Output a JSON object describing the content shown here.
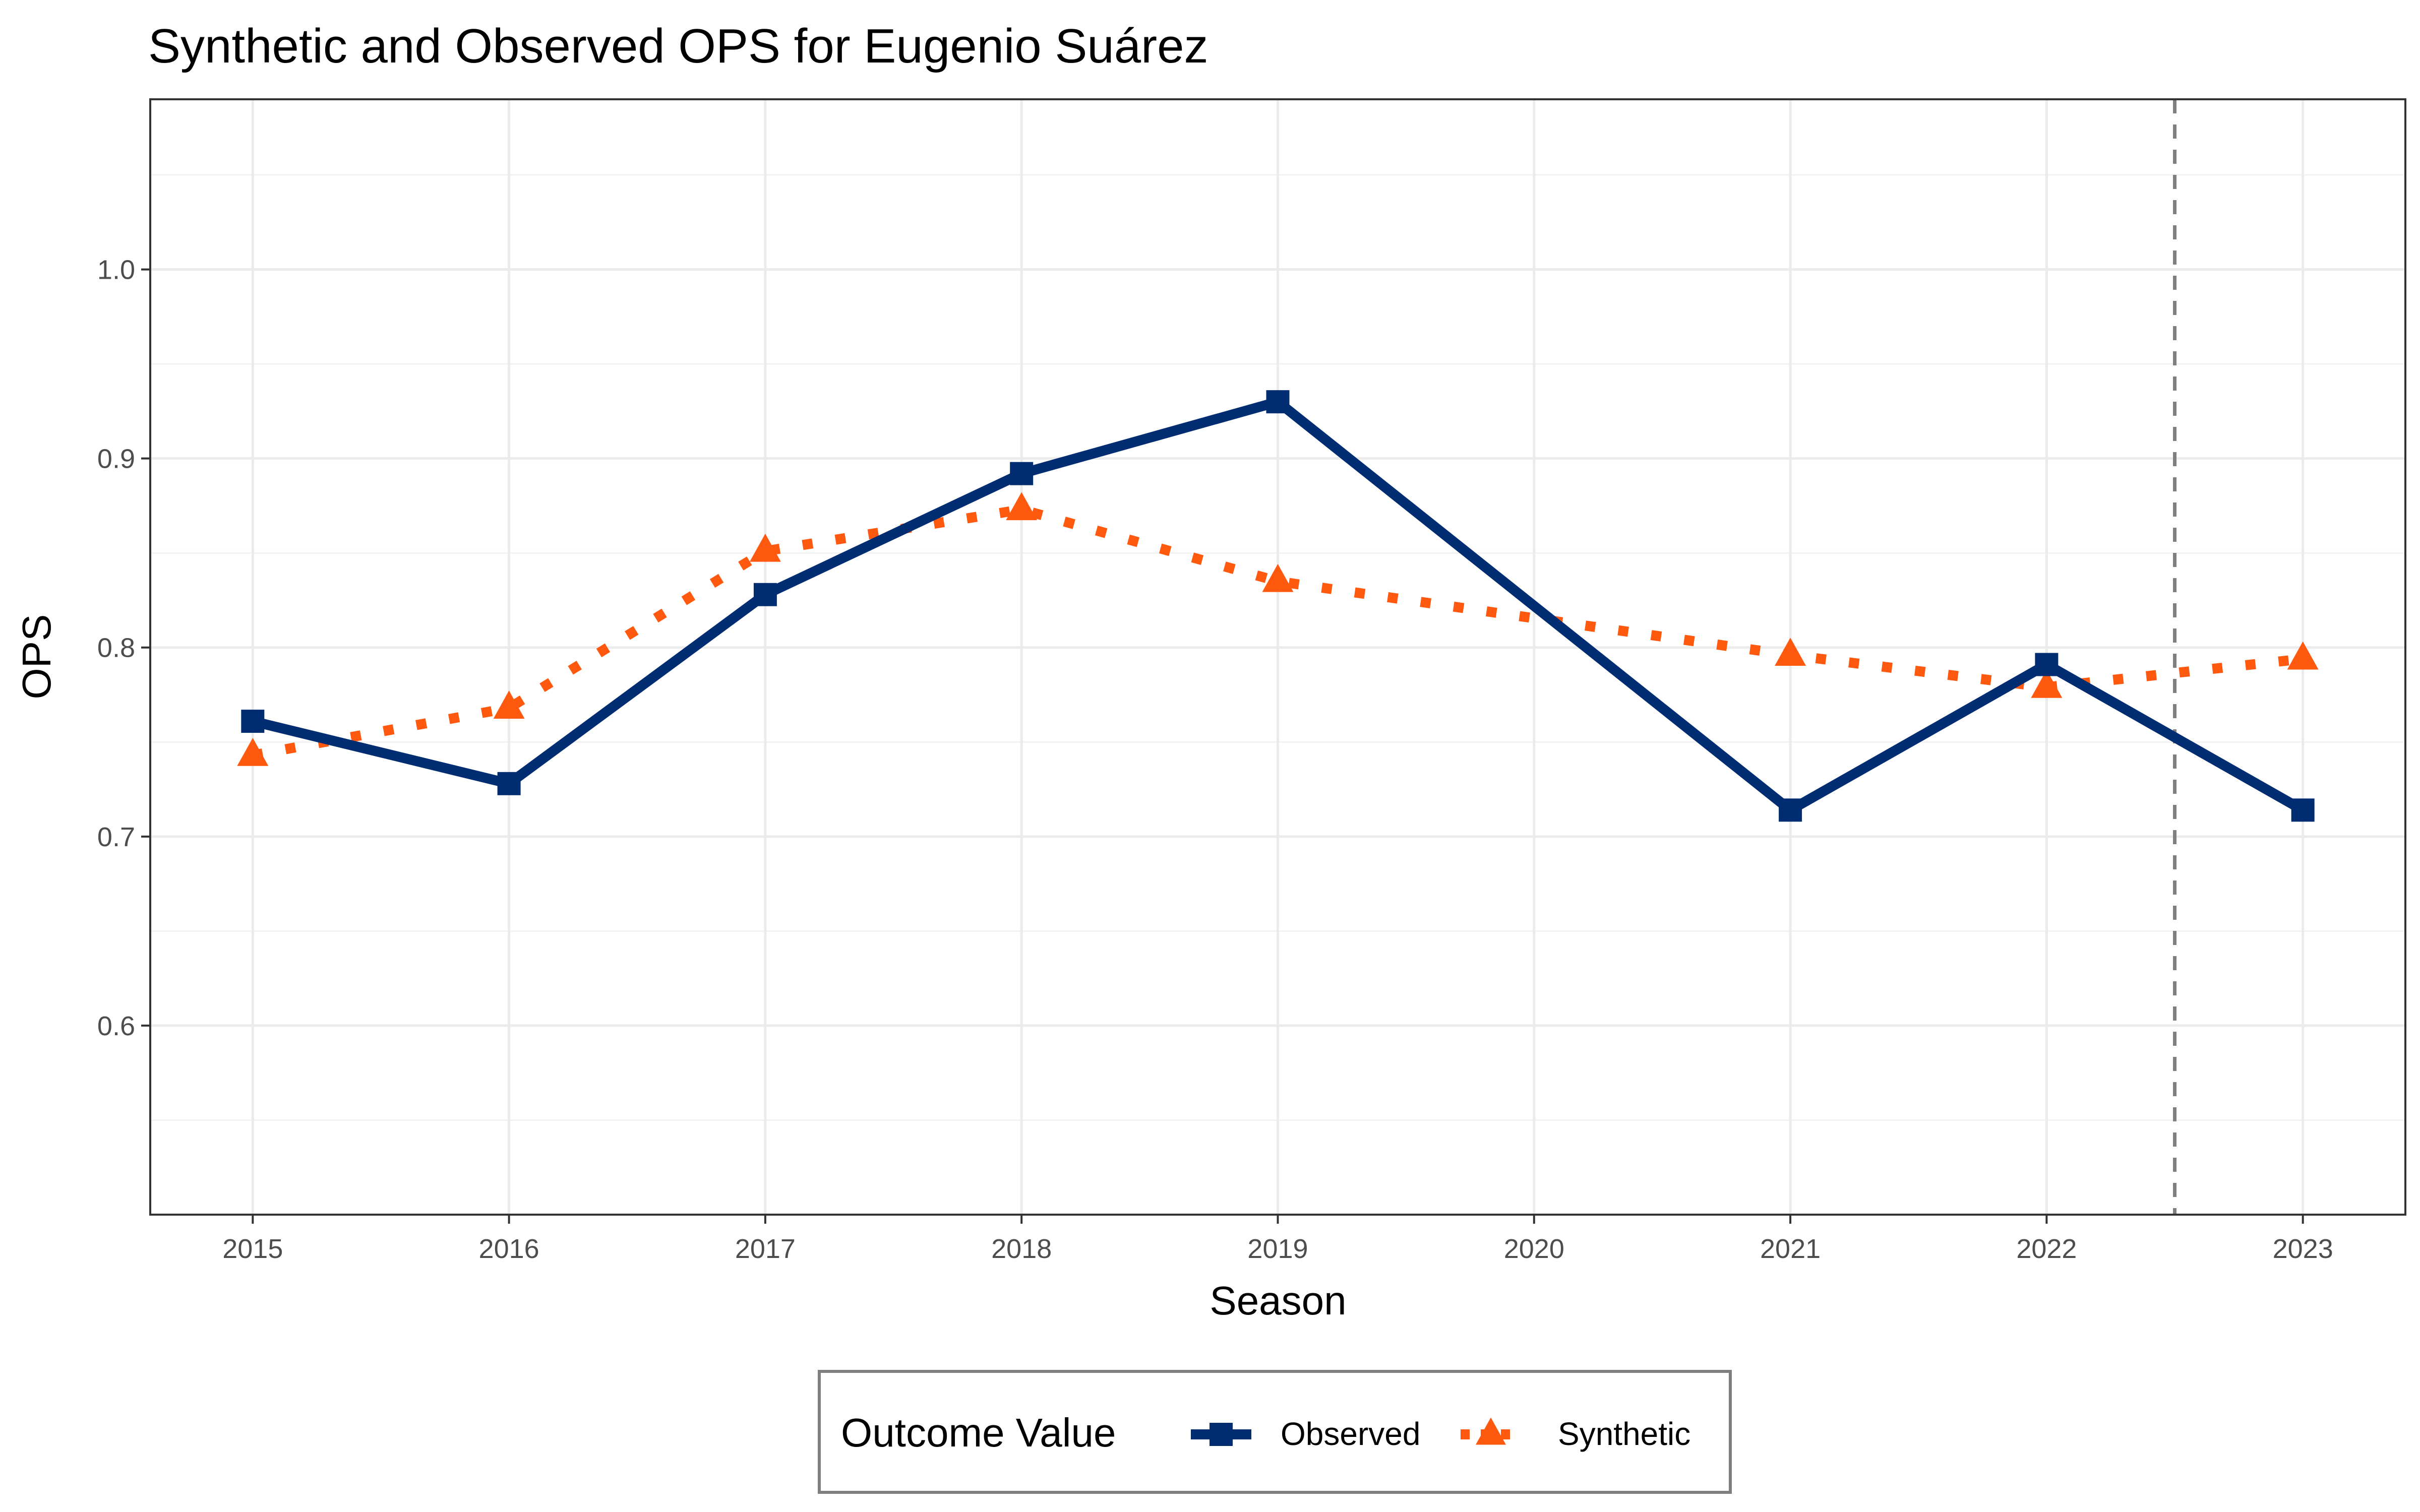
{
  "chart_data": {
    "type": "line",
    "title": "Synthetic and Observed OPS for Eugenio Suárez",
    "xlabel": "Season",
    "ylabel": "OPS",
    "x": [
      2015,
      2016,
      2017,
      2018,
      2019,
      2020,
      2021,
      2022,
      2023
    ],
    "x_ticks": [
      "2015",
      "2016",
      "2017",
      "2018",
      "2019",
      "2020",
      "2021",
      "2022",
      "2023"
    ],
    "y_ticks": [
      "0.6",
      "0.7",
      "0.8",
      "0.9",
      "1.0"
    ],
    "xlim": [
      2014.6,
      2023.4
    ],
    "ylim": [
      0.5,
      1.09
    ],
    "grid": true,
    "intervention_line": {
      "x": 2022.5,
      "style": "dashed",
      "color": "#7f7f7f"
    },
    "legend": {
      "title": "Outcome Value",
      "position": "bottom"
    },
    "series": [
      {
        "name": "Observed",
        "color": "#002d72",
        "line": "solid",
        "marker": "square",
        "x": [
          2015,
          2016,
          2017,
          2018,
          2019,
          2021,
          2022,
          2023
        ],
        "values": [
          0.761,
          0.728,
          0.828,
          0.892,
          0.93,
          0.714,
          0.791,
          0.714
        ]
      },
      {
        "name": "Synthetic",
        "color": "#ff5910",
        "line": "dotted",
        "marker": "triangle",
        "x": [
          2015,
          2016,
          2017,
          2018,
          2019,
          2021,
          2022,
          2023
        ],
        "values": [
          0.743,
          0.768,
          0.851,
          0.873,
          0.835,
          0.796,
          0.779,
          0.794
        ]
      }
    ]
  }
}
